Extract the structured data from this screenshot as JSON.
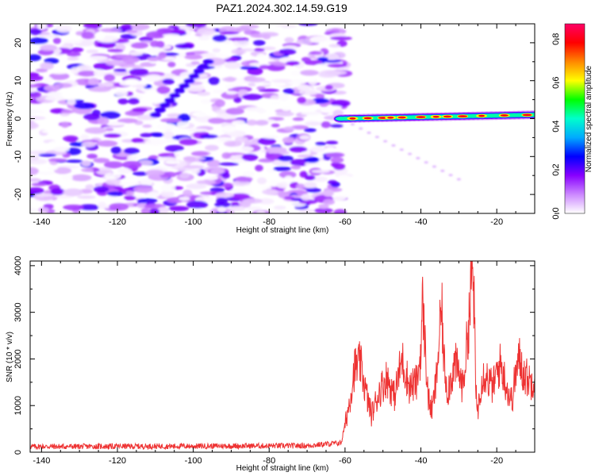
{
  "figure": {
    "title": "PAZ1.2024.302.14.59.G19"
  },
  "chart_data": [
    {
      "type": "heatmap",
      "xlabel": "Height of straight line (km)",
      "ylabel": "Frequency (Hz)",
      "xlim": [
        -143,
        -10
      ],
      "ylim": [
        -25,
        25
      ],
      "xticks": [
        -140,
        -120,
        -100,
        -80,
        -60,
        -40,
        -20
      ],
      "yticks": [
        -20,
        -10,
        0,
        10,
        20
      ],
      "colorbar": {
        "label": "Normalized spectral amplitude",
        "range": [
          0,
          0.87
        ],
        "ticks": [
          0.0,
          0.2,
          0.4,
          0.6,
          0.8
        ],
        "colors": [
          "#ffffff",
          "#cc88ff",
          "#8800ff",
          "#0000ff",
          "#00aaff",
          "#00ffcc",
          "#00ff00",
          "#ffff00",
          "#ff8800",
          "#ff0000",
          "#ff0066"
        ]
      },
      "features": {
        "noise_region": {
          "x": [
            -143,
            -60
          ],
          "amplitude": [
            0.0,
            0.25
          ]
        },
        "signal_band": {
          "x": [
            -60,
            -10
          ],
          "frequency_start": 0.0,
          "frequency_end": 1.0,
          "peak_amplitude": 0.8
        },
        "faint_trail": {
          "x_start": -58,
          "freq_start": -1.5,
          "x_end": -30,
          "freq_end": -16
        }
      }
    },
    {
      "type": "line",
      "xlabel": "Height of straight line (km)",
      "ylabel": "SNR (10 * v/v)",
      "xlim": [
        -143,
        -10
      ],
      "ylim": [
        0,
        4100
      ],
      "xticks": [
        -140,
        -120,
        -100,
        -80,
        -60,
        -40,
        -20
      ],
      "yticks": [
        0,
        1000,
        2000,
        3000,
        4000
      ],
      "color": "#ee3333",
      "x": [
        -143,
        -100,
        -70,
        -61,
        -59,
        -57.5,
        -56,
        -54,
        -53,
        -51,
        -49,
        -47,
        -45,
        -43,
        -41,
        -40,
        -39.5,
        -39,
        -38,
        -37,
        -36,
        -35,
        -34.5,
        -34,
        -33,
        -32,
        -31,
        -30,
        -29,
        -28,
        -27,
        -26.5,
        -26,
        -25.5,
        -25,
        -24,
        -23,
        -22,
        -21,
        -20,
        -19,
        -18,
        -17,
        -16,
        -15,
        -14,
        -13,
        -12,
        -11,
        -10
      ],
      "values": [
        120,
        130,
        140,
        200,
        1000,
        1800,
        1900,
        1100,
        800,
        1300,
        1600,
        1200,
        2000,
        1400,
        1500,
        2200,
        3300,
        2400,
        1100,
        900,
        1500,
        2600,
        3100,
        2000,
        1300,
        1600,
        1900,
        1700,
        1400,
        2200,
        3200,
        4000,
        3300,
        1200,
        900,
        1600,
        1700,
        1500,
        1400,
        1700,
        1900,
        1600,
        1300,
        1100,
        1700,
        2000,
        1700,
        1600,
        1500,
        1650
      ]
    }
  ]
}
